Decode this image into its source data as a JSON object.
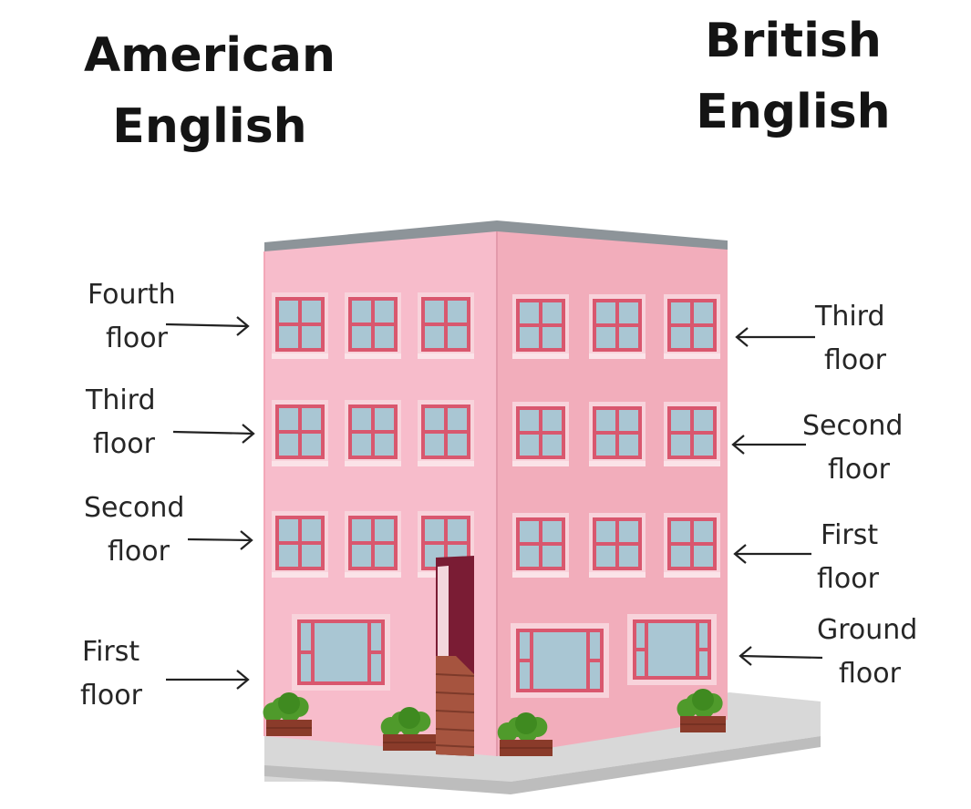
{
  "headings": {
    "american": [
      "American",
      "English"
    ],
    "british": [
      "British",
      "English"
    ]
  },
  "american_labels": [
    {
      "line1": "Fourth",
      "line2": "floor"
    },
    {
      "line1": "Third",
      "line2": "floor"
    },
    {
      "line1": "Second",
      "line2": "floor"
    },
    {
      "line1": "First",
      "line2": "floor"
    }
  ],
  "british_labels": [
    {
      "line1": "Third",
      "line2": "floor"
    },
    {
      "line1": "Second",
      "line2": "floor"
    },
    {
      "line1": "First",
      "line2": "floor"
    },
    {
      "line1": "Ground",
      "line2": "floor"
    }
  ],
  "colors": {
    "wall_front": "#f7b9c6",
    "wall_side": "#f2adbb",
    "window_frame": "#d9576e",
    "window_glass": "#a9c6d3",
    "door": "#7a1c34",
    "plant": "#4f9a2b",
    "planter": "#8a3b2a",
    "pavement": "#d6d6d6"
  }
}
